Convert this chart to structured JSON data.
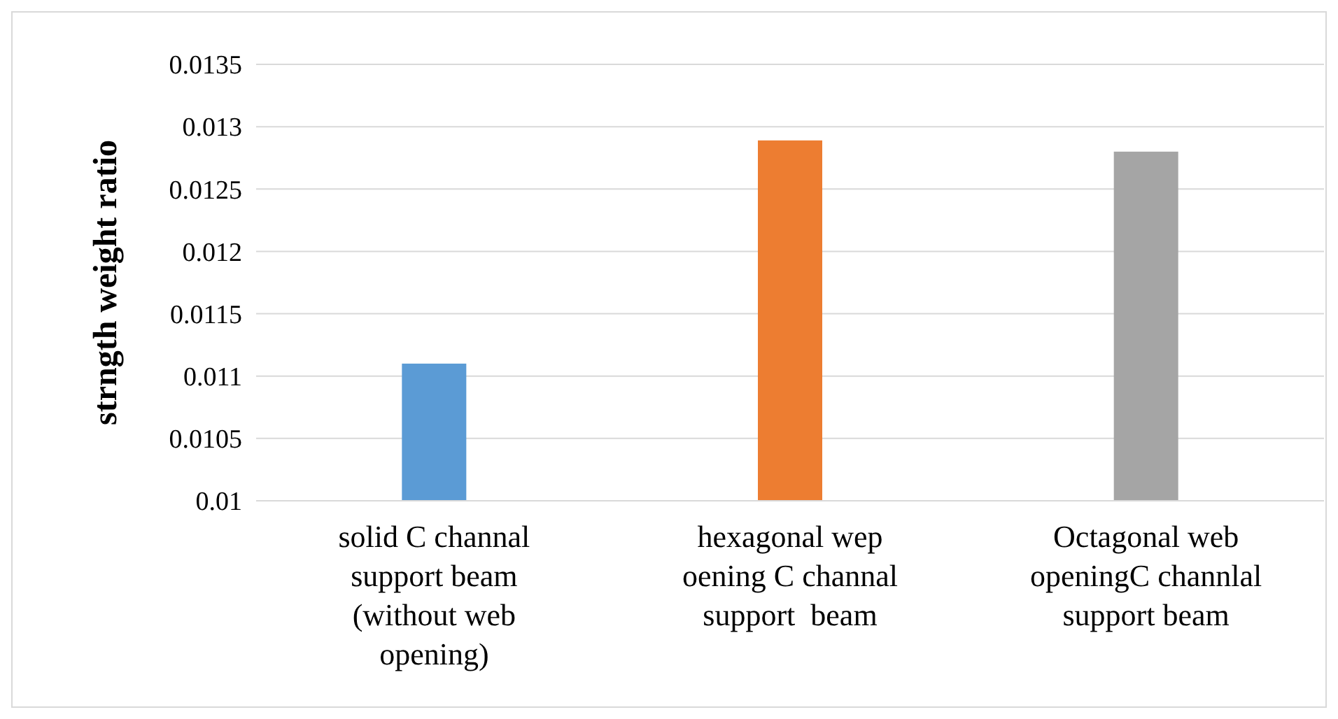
{
  "chart_data": {
    "type": "bar",
    "ylabel": "strngth weight ratio",
    "categories": [
      "solid C channal support beam (without web opening)",
      "hexagonal wep oening C channal support  beam",
      "Octagonal web openingC channlal support beam"
    ],
    "values": [
      0.0111,
      0.01289,
      0.0128
    ],
    "colors": [
      "#5b9bd5",
      "#ed7d31",
      "#a5a5a5"
    ],
    "ylim": [
      0.01,
      0.0135
    ],
    "yticks": [
      0.01,
      0.0105,
      0.011,
      0.0115,
      0.012,
      0.0125,
      0.013,
      0.0135
    ],
    "grid": "y"
  }
}
